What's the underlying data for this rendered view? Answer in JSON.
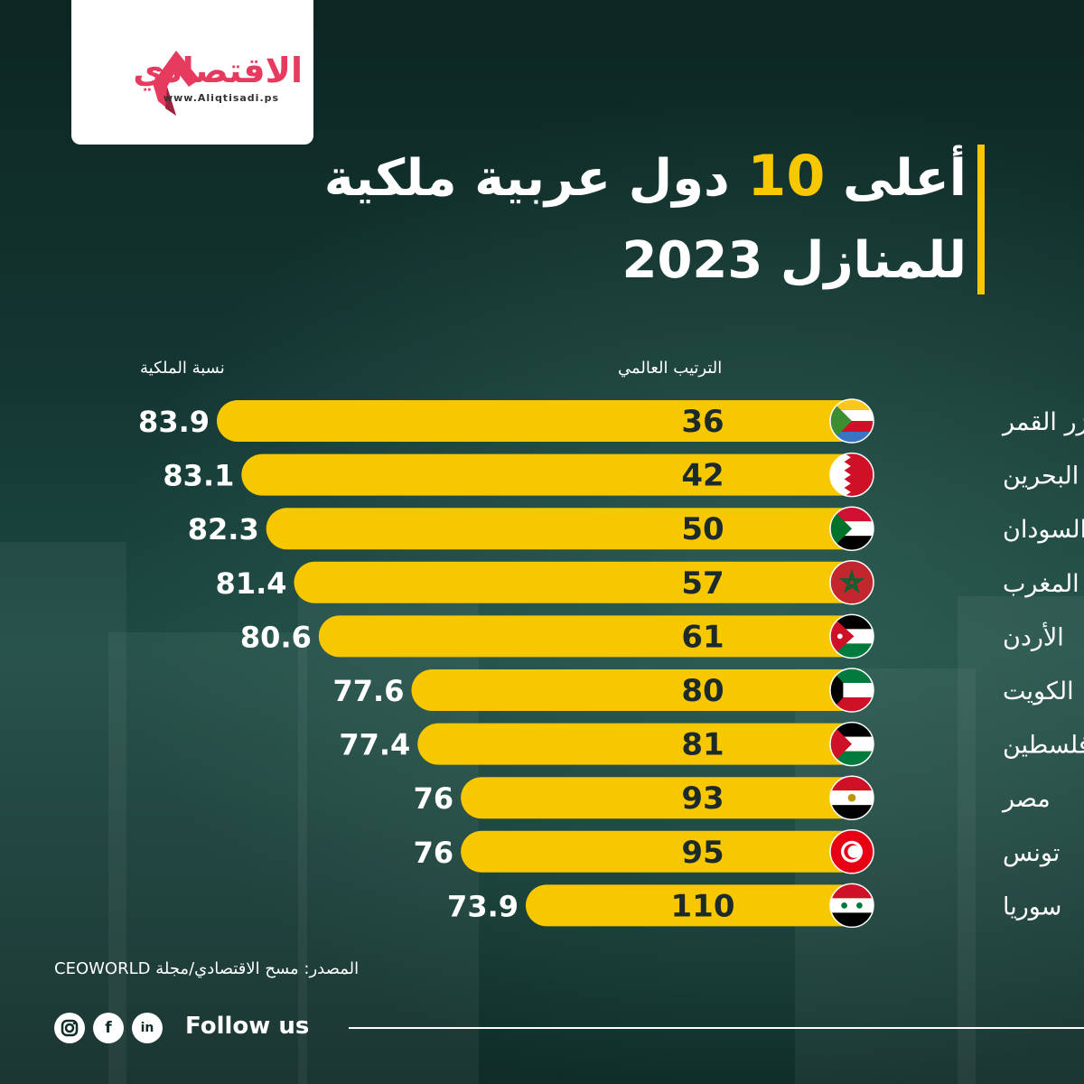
{
  "brand": {
    "name": "الاقتصادي",
    "url": "www.Aliqtisadi.ps",
    "logo_color": "#e63a5f"
  },
  "title": {
    "line1_pre": "أعلى",
    "line1_number": "10",
    "line1_post": "دول عربية ملكية",
    "line2": "للمنازل 2023"
  },
  "columns": {
    "rank": "الترتيب العالمي",
    "rate": "نسبة الملكية"
  },
  "colors": {
    "bar": "#f7c800",
    "accent": "#f7c800",
    "bar_text": "#1c2a2a"
  },
  "chart_data": {
    "type": "bar",
    "orientation": "horizontal",
    "categories": [
      "جزر القمر",
      "البحرين",
      "السودان",
      "المغرب",
      "الأردن",
      "الكويت",
      "فلسطين",
      "مصر",
      "تونس",
      "سوريا"
    ],
    "series": [
      {
        "name": "نسبة الملكية",
        "values": [
          83.9,
          83.1,
          82.3,
          81.4,
          80.6,
          77.6,
          77.4,
          76,
          76,
          73.9
        ]
      },
      {
        "name": "الترتيب العالمي",
        "values": [
          36,
          42,
          50,
          57,
          61,
          80,
          81,
          93,
          95,
          110
        ]
      }
    ],
    "labels": [
      "83.9",
      "83.1",
      "82.3",
      "81.4",
      "80.6",
      "77.6",
      "77.4",
      "76",
      "76",
      "73.9"
    ],
    "flags": [
      "comoros-flag-icon",
      "bahrain-flag-icon",
      "sudan-flag-icon",
      "morocco-flag-icon",
      "jordan-flag-icon",
      "kuwait-flag-icon",
      "palestine-flag-icon",
      "egypt-flag-icon",
      "tunisia-flag-icon",
      "syria-flag-icon"
    ]
  },
  "source": "المصدر: مسح الاقتصادي/مجلة CEOWORLD",
  "footer": {
    "follow": "Follow us",
    "icons": [
      "instagram-icon",
      "facebook-icon",
      "linkedin-icon"
    ]
  }
}
